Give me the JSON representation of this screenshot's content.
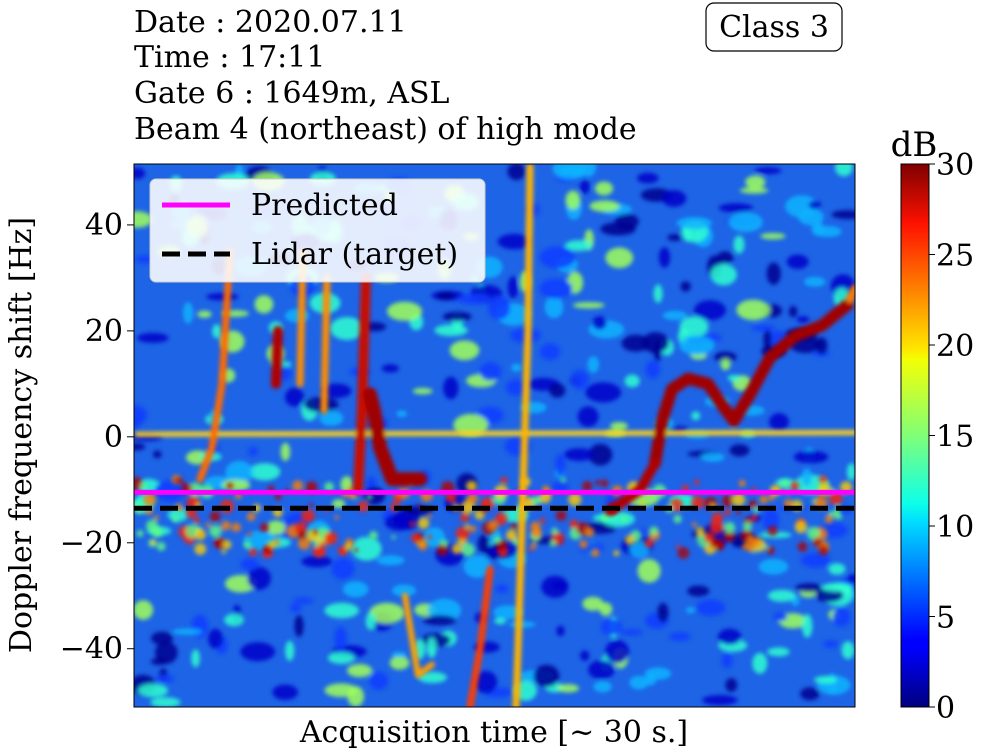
{
  "header": {
    "lines": [
      "Date : 2020.07.11",
      "Time : 17:11",
      "Gate 6 : 1649m, ASL",
      "Beam 4 (northeast) of high mode"
    ],
    "class_badge": "Class 3"
  },
  "colorbar": {
    "title": "dB",
    "ticks": [
      "0",
      "5",
      "10",
      "15",
      "20",
      "25",
      "30"
    ],
    "range": [
      0,
      30
    ],
    "colormap": "jet"
  },
  "chart_data": {
    "type": "heatmap",
    "xlabel": "Acquisition time [~ 30 s.]",
    "ylabel": "Doppler frequency shift [Hz]",
    "xticks": [],
    "ylim": [
      -51,
      51.5
    ],
    "yticks": [
      {
        "value": 40,
        "label": "40"
      },
      {
        "value": 20,
        "label": "20"
      },
      {
        "value": 0,
        "label": "0"
      },
      {
        "value": -20,
        "label": "−20"
      },
      {
        "value": -40,
        "label": "−40"
      }
    ],
    "z_unit": "dB",
    "z_range": [
      0,
      30
    ],
    "series": [
      {
        "name": "Predicted",
        "kind": "hline",
        "y": -10.5,
        "color": "#ff00ff",
        "dash": "solid"
      },
      {
        "name": "Lidar (target)",
        "kind": "hline",
        "y": -13.5,
        "color": "#000000",
        "dash": "dashed"
      }
    ],
    "legend": {
      "placement": "top-left"
    }
  }
}
